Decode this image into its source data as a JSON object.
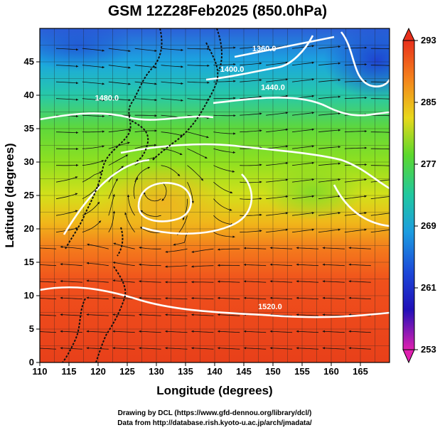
{
  "title": "GSM 12Z28Feb2025 (850.0hPa)",
  "chart_data": {
    "type": "heatmap",
    "xlabel": "Longitude (degrees)",
    "ylabel": "Latitude (degrees)",
    "xlim": [
      110,
      170
    ],
    "ylim": [
      0,
      50
    ],
    "x_ticks": [
      "110",
      "115",
      "120",
      "125",
      "130",
      "135",
      "140",
      "145",
      "150",
      "155",
      "160",
      "165"
    ],
    "y_ticks": [
      "0",
      "5",
      "10",
      "15",
      "20",
      "25",
      "30",
      "35",
      "40",
      "45"
    ],
    "x_tick_values": [
      110,
      115,
      120,
      125,
      130,
      135,
      140,
      145,
      150,
      155,
      160,
      165
    ],
    "y_tick_values": [
      0,
      5,
      10,
      15,
      20,
      25,
      30,
      35,
      40,
      45
    ],
    "grid": true,
    "colorbar": {
      "ticks": [
        "293",
        "285",
        "277",
        "269",
        "261",
        "253"
      ],
      "values": [
        293,
        285,
        277,
        269,
        261,
        253
      ],
      "min": 253,
      "max": 293
    },
    "contour_labels": [
      {
        "text": "1360.0",
        "lon": 148.5,
        "lat": 46.6
      },
      {
        "text": "1400.0",
        "lon": 143.0,
        "lat": 43.5
      },
      {
        "text": "1440.0",
        "lon": 150.0,
        "lat": 40.8
      },
      {
        "text": "1480.0",
        "lon": 121.5,
        "lat": 39.2
      },
      {
        "text": "1520.0",
        "lon": 149.5,
        "lat": 8.0
      }
    ]
  },
  "credits": {
    "line1": "Drawing by DCL (https://www.gfd-dennou.org/library/dcl/)",
    "line2": "Data from http://database.rish.kyoto-u.ac.jp/arch/jmadata/"
  }
}
